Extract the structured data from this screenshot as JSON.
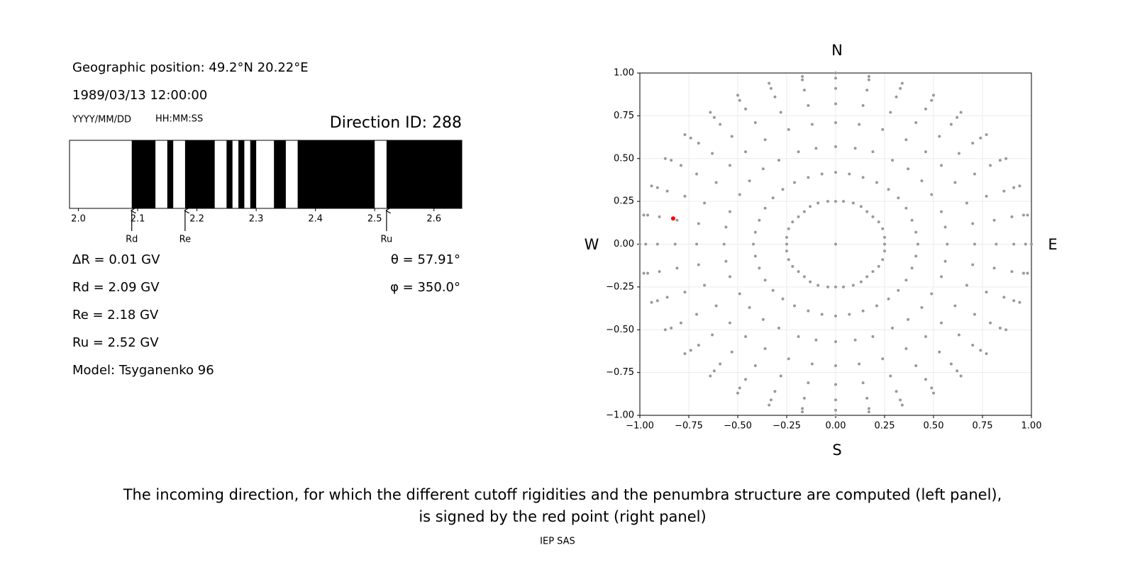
{
  "info": {
    "position": "Geographic position: 49.2°N 20.22°E",
    "datetime": "1989/03/13 12:00:00",
    "date_format": "YYYY/MM/DD",
    "time_format": "HH:MM:SS",
    "direction": "Direction ID: 288",
    "delta_r": "ΔR = 0.01 GV",
    "theta": "θ = 57.91°",
    "phi": "φ = 350.0°",
    "rd": "Rd = 2.09 GV",
    "re": "Re = 2.18 GV",
    "ru": "Ru = 2.52 GV",
    "model": "Model: Tsyganenko 96"
  },
  "compass": {
    "n": "N",
    "s": "S",
    "w": "W",
    "e": "E"
  },
  "caption": [
    "The incoming direction, for which the different cutoff rigidities and the penumbra structure are computed (left panel),",
    "is signed by the red point (right panel)"
  ],
  "footer": "IEP SAS",
  "chart_data": [
    {
      "type": "band",
      "color": "#000000",
      "xlim": [
        1.985,
        2.647
      ],
      "xticks": [
        {
          "value": 2,
          "label": "2.0"
        },
        2.1,
        2.2,
        2.3,
        2.4,
        2.5,
        2.6
      ],
      "forbidden": [
        [
          2.09,
          2.13
        ],
        [
          2.15,
          2.16
        ],
        [
          2.18,
          2.23
        ],
        [
          2.25,
          2.26
        ],
        [
          2.27,
          2.28
        ],
        [
          2.29,
          2.3
        ],
        [
          2.33,
          2.35
        ],
        [
          2.37,
          2.5
        ],
        [
          2.52,
          2.647
        ]
      ],
      "cutoffs": [
        {
          "name": "Rd",
          "value": 2.09
        },
        {
          "name": "Re",
          "value": 2.18
        },
        {
          "name": "Ru",
          "value": 2.52
        }
      ]
    },
    {
      "type": "scatter",
      "xlim": [
        -1,
        1
      ],
      "ylim": [
        -1,
        1
      ],
      "grid": true,
      "xticks": [
        {
          "value": -1,
          "label": "−1.00"
        },
        {
          "value": -0.75,
          "label": "−0.75"
        },
        {
          "value": -0.5,
          "label": "−0.50"
        },
        {
          "value": -0.25,
          "label": "−0.25"
        },
        {
          "value": 0,
          "label": "0.00"
        },
        {
          "value": 0.25,
          "label": "0.25"
        },
        {
          "value": 0.5,
          "label": "0.50"
        },
        {
          "value": 0.75,
          "label": "0.75"
        },
        {
          "value": 1,
          "label": "1.00"
        }
      ],
      "yticks": [
        {
          "value": -1,
          "label": "−1.00"
        },
        {
          "value": -0.75,
          "label": "−0.75"
        },
        {
          "value": -0.5,
          "label": "−0.50"
        },
        {
          "value": -0.25,
          "label": "−0.25"
        },
        {
          "value": 0,
          "label": "0.00"
        },
        {
          "value": 0.25,
          "label": "0.25"
        },
        {
          "value": 0.5,
          "label": "0.50"
        },
        {
          "value": 0.75,
          "label": "0.75"
        },
        {
          "value": 1,
          "label": "1.00"
        }
      ],
      "series": [
        {
          "color": "#999999",
          "x": [
            0
          ],
          "y": [
            0
          ]
        },
        {
          "color": "#999999",
          "x": [
            0,
            0.04,
            0.09,
            0.13,
            0.16,
            0.19,
            0.22,
            0.24,
            0.25,
            0.25,
            0.25,
            0.24,
            0.22,
            0.19,
            0.16,
            0.13,
            0.09,
            0.04,
            0,
            -0.04,
            -0.09,
            -0.13,
            -0.16,
            -0.19,
            -0.22,
            -0.24,
            -0.25,
            -0.25,
            -0.25,
            -0.24,
            -0.22,
            -0.19,
            -0.16,
            -0.13,
            -0.09,
            -0.04
          ],
          "y": [
            0.25,
            0.25,
            0.24,
            0.22,
            0.19,
            0.16,
            0.13,
            0.09,
            0.04,
            0,
            -0.04,
            -0.09,
            -0.13,
            -0.16,
            -0.19,
            -0.22,
            -0.24,
            -0.25,
            -0.25,
            -0.25,
            -0.24,
            -0.22,
            -0.19,
            -0.16,
            -0.13,
            -0.09,
            -0.04,
            0,
            0.04,
            0.09,
            0.13,
            0.16,
            0.19,
            0.22,
            0.24,
            0.25
          ]
        },
        {
          "color": "#999999",
          "x": [
            0,
            0.07,
            0.14,
            0.21,
            0.27,
            0.32,
            0.36,
            0.39,
            0.41,
            0.42,
            0.41,
            0.39,
            0.36,
            0.32,
            0.27,
            0.21,
            0.14,
            0.07,
            0,
            -0.07,
            -0.14,
            -0.21,
            -0.27,
            -0.32,
            -0.36,
            -0.39,
            -0.41,
            -0.42,
            -0.41,
            -0.39,
            -0.36,
            -0.32,
            -0.27,
            -0.21,
            -0.14,
            -0.07
          ],
          "y": [
            0.42,
            0.41,
            0.39,
            0.36,
            0.32,
            0.27,
            0.21,
            0.14,
            0.07,
            0,
            -0.07,
            -0.14,
            -0.21,
            -0.27,
            -0.32,
            -0.36,
            -0.39,
            -0.41,
            -0.42,
            -0.41,
            -0.39,
            -0.36,
            -0.32,
            -0.27,
            -0.21,
            -0.14,
            -0.07,
            0,
            0.07,
            0.14,
            0.21,
            0.27,
            0.32,
            0.36,
            0.39,
            0.41
          ]
        },
        {
          "color": "#999999",
          "x": [
            0,
            0.1,
            0.19,
            0.29,
            0.37,
            0.44,
            0.49,
            0.54,
            0.56,
            0.57,
            0.56,
            0.54,
            0.49,
            0.44,
            0.37,
            0.29,
            0.19,
            0.1,
            0,
            -0.1,
            -0.19,
            -0.29,
            -0.37,
            -0.44,
            -0.49,
            -0.54,
            -0.56,
            -0.57,
            -0.56,
            -0.54,
            -0.49,
            -0.44,
            -0.37,
            -0.29,
            -0.19,
            -0.1
          ],
          "y": [
            0.57,
            0.56,
            0.54,
            0.49,
            0.44,
            0.37,
            0.29,
            0.19,
            0.1,
            0,
            -0.1,
            -0.19,
            -0.29,
            -0.37,
            -0.44,
            -0.49,
            -0.54,
            -0.56,
            -0.57,
            -0.56,
            -0.54,
            -0.49,
            -0.44,
            -0.37,
            -0.29,
            -0.19,
            -0.1,
            0,
            0.1,
            0.19,
            0.29,
            0.37,
            0.44,
            0.49,
            0.54,
            0.56
          ]
        },
        {
          "color": "#999999",
          "x": [
            0,
            0.12,
            0.24,
            0.36,
            0.46,
            0.54,
            0.61,
            0.67,
            0.7,
            0.71,
            0.7,
            0.67,
            0.61,
            0.54,
            0.46,
            0.36,
            0.24,
            0.12,
            0,
            -0.12,
            -0.24,
            -0.36,
            -0.46,
            -0.54,
            -0.61,
            -0.67,
            -0.7,
            -0.71,
            -0.7,
            -0.67,
            -0.61,
            -0.54,
            -0.46,
            -0.36,
            -0.24,
            -0.12
          ],
          "y": [
            0.71,
            0.7,
            0.67,
            0.61,
            0.54,
            0.46,
            0.36,
            0.24,
            0.12,
            0,
            -0.12,
            -0.24,
            -0.36,
            -0.46,
            -0.54,
            -0.61,
            -0.67,
            -0.7,
            -0.71,
            -0.7,
            -0.67,
            -0.61,
            -0.54,
            -0.46,
            -0.36,
            -0.24,
            -0.12,
            0,
            0.12,
            0.24,
            0.36,
            0.46,
            0.54,
            0.61,
            0.67,
            0.7
          ]
        },
        {
          "color": "#999999",
          "x": [
            0,
            0.14,
            0.28,
            0.41,
            0.53,
            0.63,
            0.71,
            0.77,
            0.81,
            0.82,
            0.81,
            0.77,
            0.71,
            0.63,
            0.53,
            0.41,
            0.28,
            0.14,
            0,
            -0.14,
            -0.28,
            -0.41,
            -0.53,
            -0.63,
            -0.71,
            -0.77,
            -0.81,
            -0.82,
            -0.81,
            -0.77,
            -0.71,
            -0.63,
            -0.53,
            -0.41,
            -0.28,
            -0.14
          ],
          "y": [
            0.82,
            0.81,
            0.77,
            0.71,
            0.63,
            0.53,
            0.41,
            0.28,
            0.14,
            0,
            -0.14,
            -0.28,
            -0.41,
            -0.53,
            -0.63,
            -0.71,
            -0.77,
            -0.81,
            -0.82,
            -0.81,
            -0.77,
            -0.71,
            -0.63,
            -0.53,
            -0.41,
            -0.28,
            -0.14,
            0,
            0.14,
            0.28,
            0.41,
            0.53,
            0.63,
            0.71,
            0.77,
            0.81
          ]
        },
        {
          "color": "#999999",
          "x": [
            0,
            0.16,
            0.31,
            0.46,
            0.59,
            0.7,
            0.79,
            0.86,
            0.9,
            0.91,
            0.9,
            0.86,
            0.79,
            0.7,
            0.59,
            0.46,
            0.31,
            0.16,
            0,
            -0.16,
            -0.31,
            -0.46,
            -0.59,
            -0.7,
            -0.79,
            -0.86,
            -0.9,
            -0.91,
            -0.9,
            -0.86,
            -0.79,
            -0.7,
            -0.59,
            -0.46,
            -0.31,
            -0.16
          ],
          "y": [
            0.91,
            0.9,
            0.86,
            0.79,
            0.7,
            0.59,
            0.46,
            0.31,
            0.16,
            0,
            -0.16,
            -0.31,
            -0.46,
            -0.59,
            -0.7,
            -0.79,
            -0.86,
            -0.9,
            -0.91,
            -0.9,
            -0.86,
            -0.79,
            -0.7,
            -0.59,
            -0.46,
            -0.31,
            -0.16,
            0,
            0.16,
            0.31,
            0.46,
            0.59,
            0.7,
            0.79,
            0.86,
            0.9
          ]
        },
        {
          "color": "#999999",
          "x": [
            0,
            0.17,
            0.33,
            0.49,
            0.62,
            0.74,
            0.84,
            0.91,
            0.96,
            0.97,
            0.96,
            0.91,
            0.84,
            0.74,
            0.62,
            0.49,
            0.33,
            0.17,
            0,
            -0.17,
            -0.33,
            -0.49,
            -0.62,
            -0.74,
            -0.84,
            -0.91,
            -0.96,
            -0.97,
            -0.96,
            -0.91,
            -0.84,
            -0.74,
            -0.62,
            -0.49,
            -0.33,
            -0.17
          ],
          "y": [
            0.97,
            0.96,
            0.91,
            0.84,
            0.74,
            0.62,
            0.49,
            0.33,
            0.17,
            0,
            -0.17,
            -0.33,
            -0.49,
            -0.62,
            -0.74,
            -0.84,
            -0.91,
            -0.96,
            -0.97,
            -0.96,
            -0.91,
            -0.84,
            -0.74,
            -0.62,
            -0.49,
            -0.33,
            -0.17,
            0,
            0.17,
            0.33,
            0.49,
            0.62,
            0.74,
            0.84,
            0.91,
            0.96
          ]
        },
        {
          "color": "#999999",
          "x": [
            0,
            0.17,
            0.34,
            0.5,
            0.64,
            0.77,
            0.87,
            0.94,
            0.98,
            1,
            0.98,
            0.94,
            0.87,
            0.77,
            0.64,
            0.5,
            0.34,
            0.17,
            0,
            -0.17,
            -0.34,
            -0.5,
            -0.64,
            -0.77,
            -0.87,
            -0.94,
            -0.98,
            -1,
            -0.98,
            -0.94,
            -0.87,
            -0.77,
            -0.64,
            -0.5,
            -0.34,
            -0.17
          ],
          "y": [
            1,
            0.98,
            0.94,
            0.87,
            0.77,
            0.64,
            0.5,
            0.34,
            0.17,
            0,
            -0.17,
            -0.34,
            -0.5,
            -0.64,
            -0.77,
            -0.87,
            -0.94,
            -0.98,
            -1,
            -0.98,
            -0.94,
            -0.87,
            -0.77,
            -0.64,
            -0.5,
            -0.34,
            -0.17,
            0,
            0.17,
            0.34,
            0.5,
            0.64,
            0.77,
            0.87,
            0.94,
            0.98
          ]
        },
        {
          "color": "#ff0000",
          "x": [
            -0.83
          ],
          "y": [
            0.15
          ]
        }
      ]
    }
  ]
}
